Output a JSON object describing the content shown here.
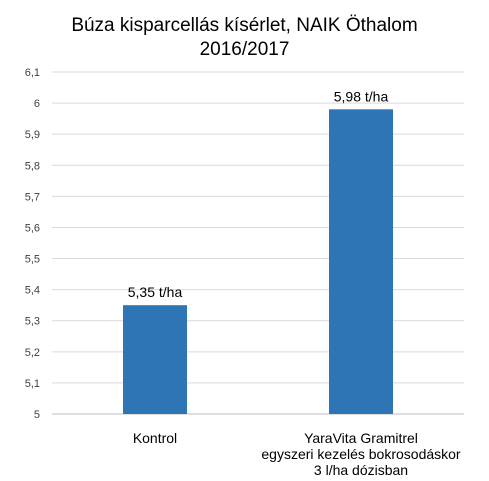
{
  "chart_data": {
    "type": "bar",
    "title": [
      "Búza kisparcellás kísérlet, NAIK Öthalom",
      "2016/2017"
    ],
    "categories": [
      [
        "Kontrol"
      ],
      [
        "YaraVita Gramitrel",
        "egyszeri kezelés bokrosodáskor",
        "3 l/ha dózisban"
      ]
    ],
    "values": [
      5.35,
      5.98
    ],
    "data_labels": [
      "5,35 t/ha",
      "5,98 t/ha"
    ],
    "ylim": [
      5,
      6.1
    ],
    "yticks": [
      "5",
      "5,1",
      "5,2",
      "5,3",
      "5,4",
      "5,5",
      "5,6",
      "5,7",
      "5,8",
      "5,9",
      "6",
      "6,1"
    ],
    "grid": true,
    "legend": "none",
    "colors": {
      "bar": "#2E75B6",
      "grid": "#D9D9D9"
    }
  }
}
